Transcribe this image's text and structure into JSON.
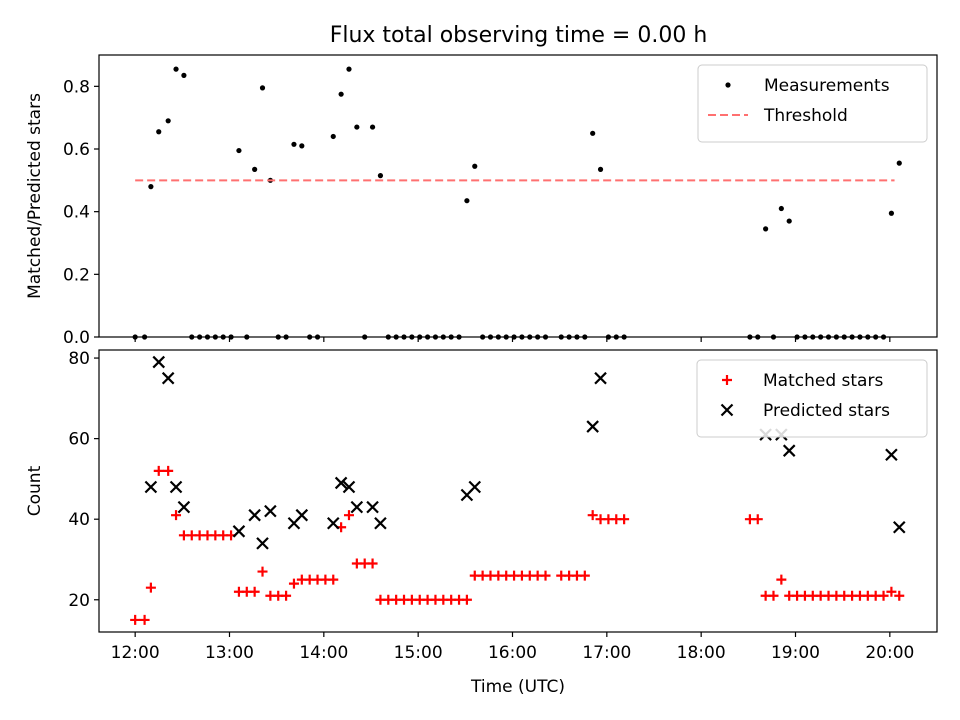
{
  "figure": {
    "title": "Flux total observing time = 0.00 h"
  },
  "chart_data": [
    {
      "type": "scatter",
      "title": "Flux total observing time = 0.00 h",
      "xlabel": "",
      "ylabel": "Matched/Predicted stars",
      "xlim": [
        "11:37",
        "20:30"
      ],
      "ylim": [
        0,
        0.9
      ],
      "yticks": [
        0.0,
        0.2,
        0.4,
        0.6,
        0.8
      ],
      "ytick_labels": [
        "0.0",
        "0.2",
        "0.4",
        "0.6",
        "0.8"
      ],
      "xticks": [
        "12:00",
        "13:00",
        "14:00",
        "15:00",
        "16:00",
        "17:00",
        "18:00",
        "19:00",
        "20:00"
      ],
      "grid": false,
      "legend": {
        "placement": "upper right",
        "entries": [
          "Measurements",
          "Threshold"
        ]
      },
      "series": [
        {
          "name": "Measurements",
          "color": "#000000",
          "marker": "dot",
          "points": [
            [
              "12:00",
              0.0
            ],
            [
              "12:06",
              0.0
            ],
            [
              "12:10",
              0.48
            ],
            [
              "12:15",
              0.655
            ],
            [
              "12:21",
              0.69
            ],
            [
              "12:26",
              0.855
            ],
            [
              "12:31",
              0.835
            ],
            [
              "12:36",
              0.0
            ],
            [
              "12:41",
              0.0
            ],
            [
              "12:46",
              0.0
            ],
            [
              "12:51",
              0.0
            ],
            [
              "12:56",
              0.0
            ],
            [
              "13:01",
              0.0
            ],
            [
              "13:06",
              0.595
            ],
            [
              "13:11",
              0.0
            ],
            [
              "13:16",
              0.535
            ],
            [
              "13:21",
              0.795
            ],
            [
              "13:26",
              0.5
            ],
            [
              "13:31",
              0.0
            ],
            [
              "13:36",
              0.0
            ],
            [
              "13:41",
              0.615
            ],
            [
              "13:46",
              0.61
            ],
            [
              "13:51",
              0.0
            ],
            [
              "13:56",
              0.0
            ],
            [
              "14:06",
              0.64
            ],
            [
              "14:11",
              0.775
            ],
            [
              "14:16",
              0.855
            ],
            [
              "14:21",
              0.67
            ],
            [
              "14:26",
              0.0
            ],
            [
              "14:31",
              0.67
            ],
            [
              "14:36",
              0.515
            ],
            [
              "14:41",
              0.0
            ],
            [
              "14:46",
              0.0
            ],
            [
              "14:51",
              0.0
            ],
            [
              "14:56",
              0.0
            ],
            [
              "15:01",
              0.0
            ],
            [
              "15:06",
              0.0
            ],
            [
              "15:11",
              0.0
            ],
            [
              "15:16",
              0.0
            ],
            [
              "15:21",
              0.0
            ],
            [
              "15:26",
              0.0
            ],
            [
              "15:31",
              0.435
            ],
            [
              "15:36",
              0.545
            ],
            [
              "15:41",
              0.0
            ],
            [
              "15:46",
              0.0
            ],
            [
              "15:51",
              0.0
            ],
            [
              "15:56",
              0.0
            ],
            [
              "16:01",
              0.0
            ],
            [
              "16:06",
              0.0
            ],
            [
              "16:11",
              0.0
            ],
            [
              "16:16",
              0.0
            ],
            [
              "16:21",
              0.0
            ],
            [
              "16:31",
              0.0
            ],
            [
              "16:36",
              0.0
            ],
            [
              "16:41",
              0.0
            ],
            [
              "16:46",
              0.0
            ],
            [
              "16:51",
              0.65
            ],
            [
              "16:56",
              0.535
            ],
            [
              "17:01",
              0.0
            ],
            [
              "17:06",
              0.0
            ],
            [
              "17:11",
              0.0
            ],
            [
              "18:31",
              0.0
            ],
            [
              "18:36",
              0.0
            ],
            [
              "18:41",
              0.345
            ],
            [
              "18:46",
              0.0
            ],
            [
              "18:51",
              0.41
            ],
            [
              "18:56",
              0.37
            ],
            [
              "19:01",
              0.0
            ],
            [
              "19:06",
              0.0
            ],
            [
              "19:11",
              0.0
            ],
            [
              "19:16",
              0.0
            ],
            [
              "19:21",
              0.0
            ],
            [
              "19:26",
              0.0
            ],
            [
              "19:31",
              0.0
            ],
            [
              "19:36",
              0.0
            ],
            [
              "19:41",
              0.0
            ],
            [
              "19:46",
              0.0
            ],
            [
              "19:51",
              0.0
            ],
            [
              "19:56",
              0.0
            ],
            [
              "20:01",
              0.395
            ],
            [
              "20:06",
              0.555
            ]
          ]
        },
        {
          "name": "Threshold",
          "color": "#ff7070",
          "style": "dashed",
          "points": [
            [
              "12:00",
              0.5
            ],
            [
              "20:03",
              0.5
            ]
          ]
        }
      ]
    },
    {
      "type": "scatter",
      "title": "",
      "xlabel": "Time (UTC)",
      "ylabel": "Count",
      "xlim": [
        "11:37",
        "20:30"
      ],
      "ylim": [
        12,
        82
      ],
      "yticks": [
        20,
        40,
        60,
        80
      ],
      "ytick_labels": [
        "20",
        "40",
        "60",
        "80"
      ],
      "xticks": [
        "12:00",
        "13:00",
        "14:00",
        "15:00",
        "16:00",
        "17:00",
        "18:00",
        "19:00",
        "20:00"
      ],
      "xtick_labels": [
        "12:00",
        "13:00",
        "14:00",
        "15:00",
        "16:00",
        "17:00",
        "18:00",
        "19:00",
        "20:00"
      ],
      "grid": false,
      "legend": {
        "placement": "upper right",
        "entries": [
          "Matched stars",
          "Predicted stars"
        ]
      },
      "series": [
        {
          "name": "Matched stars",
          "color": "#ff0000",
          "marker": "plus",
          "points": [
            [
              "12:00",
              15
            ],
            [
              "12:06",
              15
            ],
            [
              "12:10",
              23
            ],
            [
              "12:15",
              52
            ],
            [
              "12:21",
              52
            ],
            [
              "12:26",
              41
            ],
            [
              "12:31",
              36
            ],
            [
              "12:36",
              36
            ],
            [
              "12:41",
              36
            ],
            [
              "12:46",
              36
            ],
            [
              "12:51",
              36
            ],
            [
              "12:56",
              36
            ],
            [
              "13:01",
              36
            ],
            [
              "13:06",
              22
            ],
            [
              "13:11",
              22
            ],
            [
              "13:16",
              22
            ],
            [
              "13:21",
              27
            ],
            [
              "13:26",
              21
            ],
            [
              "13:31",
              21
            ],
            [
              "13:36",
              21
            ],
            [
              "13:41",
              24
            ],
            [
              "13:46",
              25
            ],
            [
              "13:51",
              25
            ],
            [
              "13:56",
              25
            ],
            [
              "14:01",
              25
            ],
            [
              "14:06",
              25
            ],
            [
              "14:11",
              38
            ],
            [
              "14:16",
              41
            ],
            [
              "14:21",
              29
            ],
            [
              "14:26",
              29
            ],
            [
              "14:31",
              29
            ],
            [
              "14:36",
              20
            ],
            [
              "14:41",
              20
            ],
            [
              "14:46",
              20
            ],
            [
              "14:51",
              20
            ],
            [
              "14:56",
              20
            ],
            [
              "15:01",
              20
            ],
            [
              "15:06",
              20
            ],
            [
              "15:11",
              20
            ],
            [
              "15:16",
              20
            ],
            [
              "15:21",
              20
            ],
            [
              "15:26",
              20
            ],
            [
              "15:31",
              20
            ],
            [
              "15:36",
              26
            ],
            [
              "15:41",
              26
            ],
            [
              "15:46",
              26
            ],
            [
              "15:51",
              26
            ],
            [
              "15:56",
              26
            ],
            [
              "16:01",
              26
            ],
            [
              "16:06",
              26
            ],
            [
              "16:11",
              26
            ],
            [
              "16:16",
              26
            ],
            [
              "16:21",
              26
            ],
            [
              "16:31",
              26
            ],
            [
              "16:36",
              26
            ],
            [
              "16:41",
              26
            ],
            [
              "16:46",
              26
            ],
            [
              "16:51",
              41
            ],
            [
              "16:56",
              40
            ],
            [
              "17:01",
              40
            ],
            [
              "17:06",
              40
            ],
            [
              "17:11",
              40
            ],
            [
              "18:31",
              40
            ],
            [
              "18:36",
              40
            ],
            [
              "18:41",
              21
            ],
            [
              "18:46",
              21
            ],
            [
              "18:51",
              25
            ],
            [
              "18:56",
              21
            ],
            [
              "19:01",
              21
            ],
            [
              "19:06",
              21
            ],
            [
              "19:11",
              21
            ],
            [
              "19:16",
              21
            ],
            [
              "19:21",
              21
            ],
            [
              "19:26",
              21
            ],
            [
              "19:31",
              21
            ],
            [
              "19:36",
              21
            ],
            [
              "19:41",
              21
            ],
            [
              "19:46",
              21
            ],
            [
              "19:51",
              21
            ],
            [
              "19:56",
              21
            ],
            [
              "20:01",
              22
            ],
            [
              "20:06",
              21
            ]
          ]
        },
        {
          "name": "Predicted stars",
          "color": "#000000",
          "marker": "x",
          "points": [
            [
              "12:10",
              48
            ],
            [
              "12:15",
              79
            ],
            [
              "12:21",
              75
            ],
            [
              "12:26",
              48
            ],
            [
              "12:31",
              43
            ],
            [
              "13:06",
              37
            ],
            [
              "13:16",
              41
            ],
            [
              "13:21",
              34
            ],
            [
              "13:26",
              42
            ],
            [
              "13:41",
              39
            ],
            [
              "13:46",
              41
            ],
            [
              "14:06",
              39
            ],
            [
              "14:11",
              49
            ],
            [
              "14:16",
              48
            ],
            [
              "14:21",
              43
            ],
            [
              "14:31",
              43
            ],
            [
              "14:36",
              39
            ],
            [
              "15:31",
              46
            ],
            [
              "15:36",
              48
            ],
            [
              "16:51",
              63
            ],
            [
              "16:56",
              75
            ],
            [
              "18:41",
              61
            ],
            [
              "18:51",
              61
            ],
            [
              "18:56",
              57
            ],
            [
              "20:01",
              56
            ],
            [
              "20:06",
              38
            ]
          ]
        }
      ]
    }
  ]
}
